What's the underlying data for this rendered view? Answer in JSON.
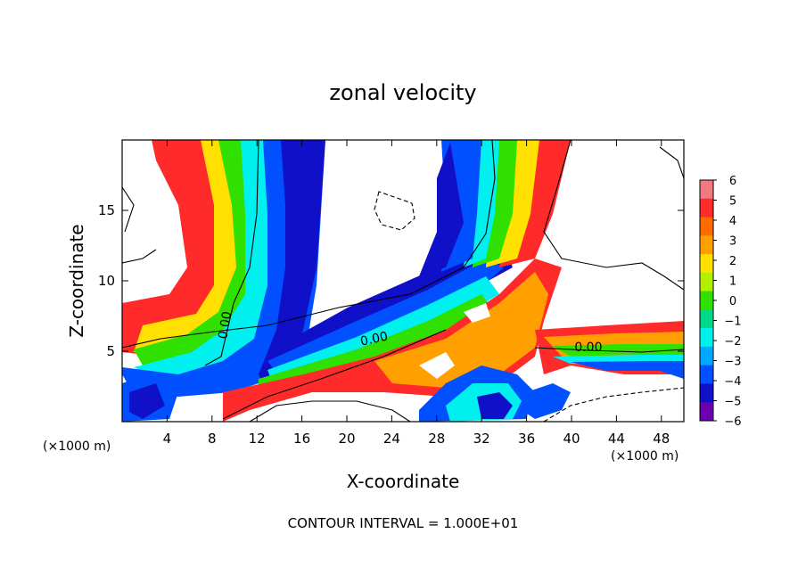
{
  "chart_data": {
    "type": "heatmap",
    "title": "zonal velocity",
    "xlabel": "X-coordinate",
    "ylabel": "Z-coordinate",
    "x_unit": "(×1000 m)",
    "y_unit": "(×1000 m)",
    "footer": "CONTOUR INTERVAL = 1.000E+01",
    "xlim": [
      0,
      50
    ],
    "ylim": [
      0,
      20
    ],
    "x_ticks": [
      4,
      8,
      12,
      16,
      20,
      24,
      28,
      32,
      36,
      40,
      44,
      48
    ],
    "y_ticks": [
      5,
      10,
      15
    ],
    "contour_labels": [
      {
        "text": "0.00",
        "x": 9.5,
        "z": 6.8,
        "rotate": -80
      },
      {
        "text": "0.00",
        "x": 22.5,
        "z": 5.6,
        "rotate": -12
      },
      {
        "text": "0.00",
        "x": 41.5,
        "z": 5.0,
        "rotate": 0
      }
    ],
    "colorbar": {
      "labels": [
        "6",
        "5",
        "4",
        "3",
        "2",
        "1",
        "0",
        "−1",
        "−2",
        "−3",
        "−4",
        "−5",
        "−6"
      ],
      "colors": [
        "#f07a80",
        "#ff2a2a",
        "#ff6a00",
        "#ffa000",
        "#ffe000",
        "#b0f000",
        "#30e000",
        "#00d88a",
        "#00f0f0",
        "#00a8ff",
        "#0050ff",
        "#1010c8",
        "#6a00b0"
      ]
    },
    "grid": false,
    "legend": "right"
  }
}
